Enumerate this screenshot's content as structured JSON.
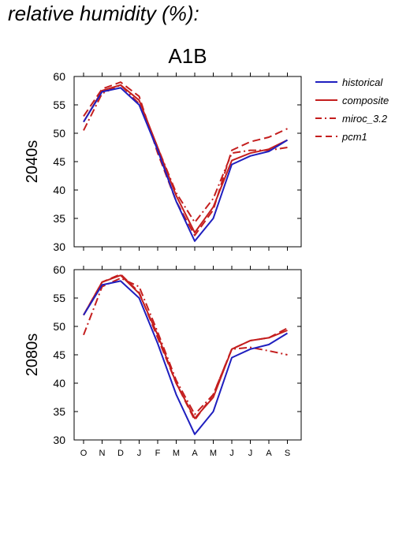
{
  "page": {
    "title": "relative humidity (%):"
  },
  "colors": {
    "historical": "#1f1fbf",
    "future": "#c41e1e"
  },
  "chart_data": [
    {
      "type": "line",
      "title": "A1B",
      "ylabel": "2040s",
      "categories": [
        "O",
        "N",
        "D",
        "J",
        "F",
        "M",
        "A",
        "M",
        "J",
        "J",
        "A",
        "S"
      ],
      "ylim": [
        30,
        60
      ],
      "yticks": [
        30,
        35,
        40,
        45,
        50,
        55,
        60
      ],
      "legend_position": "right",
      "series": [
        {
          "name": "historical",
          "style": "solid",
          "color": "#1f1fbf",
          "values": [
            52,
            57.3,
            58,
            55,
            47,
            38,
            31,
            35,
            44.5,
            46,
            46.8,
            48.8
          ]
        },
        {
          "name": "composite",
          "style": "solid",
          "color": "#c41e1e",
          "values": [
            52,
            57.5,
            58.5,
            55.8,
            47.5,
            39,
            32.5,
            37,
            45.2,
            46.5,
            47.2,
            48.8
          ]
        },
        {
          "name": "miroc_3.2",
          "style": "dashdot",
          "color": "#c41e1e",
          "values": [
            50.5,
            57,
            58.5,
            55.2,
            47.5,
            39.5,
            34.3,
            38.5,
            46.5,
            47,
            47,
            47.5
          ]
        },
        {
          "name": "pcm1",
          "style": "dashed",
          "color": "#c41e1e",
          "values": [
            53,
            57.8,
            59,
            56.5,
            46.5,
            38,
            32,
            36.5,
            47,
            48.5,
            49.3,
            50.8
          ]
        }
      ]
    },
    {
      "type": "line",
      "ylabel": "2080s",
      "categories": [
        "O",
        "N",
        "D",
        "J",
        "F",
        "M",
        "A",
        "M",
        "J",
        "J",
        "A",
        "S"
      ],
      "ylim": [
        30,
        60
      ],
      "yticks": [
        30,
        35,
        40,
        45,
        50,
        55,
        60
      ],
      "series": [
        {
          "name": "historical",
          "style": "solid",
          "color": "#1f1fbf",
          "values": [
            52,
            57.3,
            58,
            55,
            47,
            38,
            31,
            35,
            44.5,
            46,
            46.8,
            48.8
          ]
        },
        {
          "name": "composite",
          "style": "solid",
          "color": "#c41e1e",
          "values": [
            52,
            57.8,
            59,
            55.8,
            48.5,
            40,
            33.8,
            37.5,
            46,
            47.5,
            48,
            49.3
          ]
        },
        {
          "name": "miroc_3.2",
          "style": "dashdot",
          "color": "#c41e1e",
          "values": [
            48.5,
            57,
            58.5,
            57,
            49,
            40.5,
            34.5,
            38,
            46,
            46.3,
            45.7,
            45
          ]
        },
        {
          "name": "pcm1",
          "style": "dashed",
          "color": "#c41e1e",
          "values": [
            52,
            57.8,
            59.2,
            56,
            48,
            40,
            33.5,
            38,
            46,
            47.5,
            48,
            49.7
          ]
        }
      ]
    }
  ]
}
